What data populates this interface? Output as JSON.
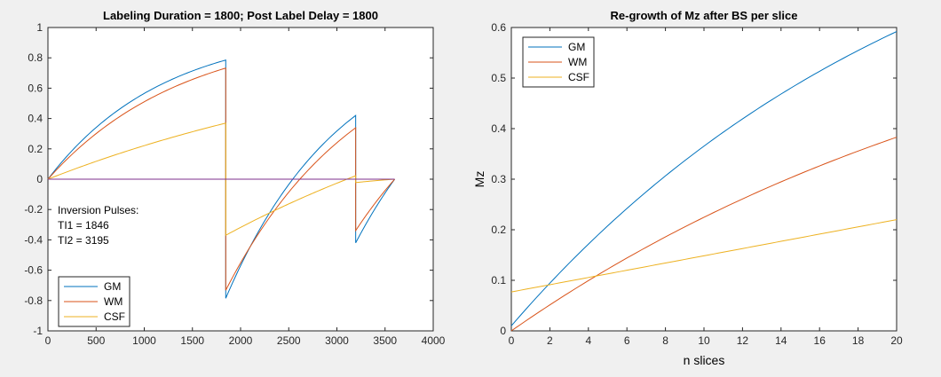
{
  "chart_data": [
    {
      "type": "line",
      "title": "Labeling Duration = 1800; Post Label Delay = 1800",
      "xlabel": "",
      "ylabel": "",
      "xlim": [
        0,
        4000
      ],
      "ylim": [
        -1,
        1
      ],
      "xticks": [
        "0",
        "500",
        "1000",
        "1500",
        "2000",
        "2500",
        "3000",
        "3500",
        "4000"
      ],
      "yticks": [
        "-1",
        "-0.8",
        "-0.6",
        "-0.4",
        "-0.2",
        "0",
        "0.2",
        "0.4",
        "0.6",
        "0.8",
        "1"
      ],
      "legend_position": "bottom-left",
      "annotation": {
        "title": "Inversion Pulses:",
        "line1": "TI1 = 1846",
        "line2": "TI2 = 3195"
      },
      "inversion_times": [
        1846,
        3195
      ],
      "end_time": 3600,
      "series": [
        {
          "name": "GM",
          "color": "#0072BD",
          "t1": 1200,
          "show_in_legend": true
        },
        {
          "name": "WM",
          "color": "#D95319",
          "t1": 1400,
          "show_in_legend": true
        },
        {
          "name": "CSF",
          "color": "#EDB120",
          "t1": 4000,
          "show_in_legend": true
        },
        {
          "name": "zero",
          "color": "#7E2F8E",
          "t1": null,
          "show_in_legend": false
        }
      ]
    },
    {
      "type": "line",
      "title": "Re-growth of Mz after BS per slice",
      "xlabel": "n slices",
      "ylabel": "Mz",
      "xlim": [
        0,
        20
      ],
      "ylim": [
        0,
        0.6
      ],
      "xticks": [
        "0",
        "2",
        "4",
        "6",
        "8",
        "10",
        "12",
        "14",
        "16",
        "18",
        "20"
      ],
      "yticks": [
        "0",
        "0.1",
        "0.2",
        "0.3",
        "0.4",
        "0.5",
        "0.6"
      ],
      "legend_position": "top-left",
      "series": [
        {
          "name": "GM",
          "color": "#0072BD",
          "y_start": 0.01,
          "y_end": 0.592,
          "k": 0.045
        },
        {
          "name": "WM",
          "color": "#D95319",
          "y_start": 0.0,
          "y_end": 0.383,
          "k": 0.035
        },
        {
          "name": "CSF",
          "color": "#EDB120",
          "y_start": 0.077,
          "y_end": 0.22,
          "k": 0.0
        }
      ]
    }
  ]
}
